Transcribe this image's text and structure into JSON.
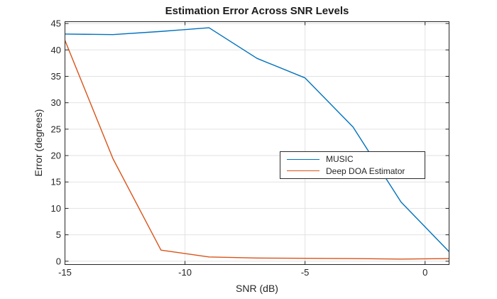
{
  "chart_data": {
    "type": "line",
    "title": "Estimation Error Across SNR Levels",
    "xlabel": "SNR (dB)",
    "ylabel": "Error (degrees)",
    "x": [
      -15,
      -13,
      -11,
      -9,
      -7,
      -5,
      -3,
      -1,
      1
    ],
    "series": [
      {
        "name": "MUSIC",
        "color": "#0072BD",
        "values": [
          43.0,
          42.9,
          43.5,
          44.2,
          38.4,
          34.7,
          25.4,
          11.2,
          1.8
        ]
      },
      {
        "name": "Deep DOA Estimator",
        "color": "#D95319",
        "values": [
          41.8,
          19.4,
          2.1,
          0.8,
          0.6,
          0.55,
          0.5,
          0.4,
          0.5
        ]
      }
    ],
    "xlim": [
      -15,
      1
    ],
    "ylim": [
      0,
      45
    ],
    "xticks": [
      -15,
      -10,
      -5,
      0
    ],
    "yticks": [
      0,
      5,
      10,
      15,
      20,
      25,
      30,
      35,
      40,
      45
    ],
    "grid": true,
    "legend_position": "middle-right",
    "colors": {
      "axis": "#262626",
      "grid": "#E2E2E2",
      "text": "#262626",
      "title": "#1c1c1c",
      "background": "#FFFFFF"
    }
  }
}
